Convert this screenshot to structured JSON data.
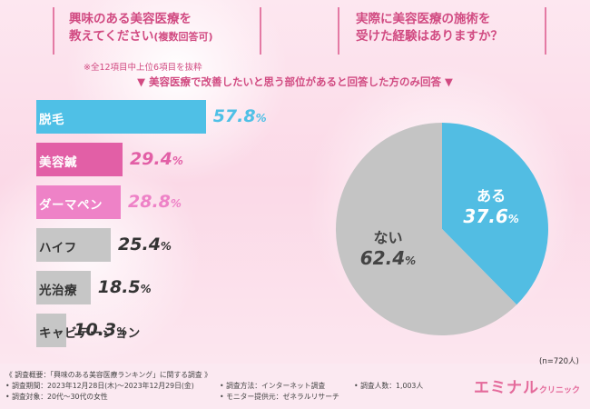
{
  "questions": {
    "left_line1": "興味のある美容医療を",
    "left_line2": "教えてください",
    "left_suffix": "(複数回答可)",
    "right_line1": "実際に美容医療の施術を",
    "right_line2": "受けた経験はありますか？"
  },
  "note": "※全12項目中上位6項目を抜粋",
  "subtitle": "▼ 美容医療で改善したいと思う部位があると回答した方のみ回答 ▼",
  "colors": {
    "bar_blue": "#4fc0e6",
    "bar_magenta": "#e25fa6",
    "bar_pink": "#ee82c7",
    "bar_gray": "#c6c6c6",
    "pie_blue": "#52bde3",
    "pie_gray": "#c4c4c4",
    "accent": "#d14b82"
  },
  "chart_data": [
    {
      "type": "bar",
      "orientation": "horizontal",
      "categories": [
        "脱毛",
        "美容鍼",
        "ダーマペン",
        "ハイフ",
        "光治療",
        "キャビテーション"
      ],
      "values": [
        57.8,
        29.4,
        28.8,
        25.4,
        18.5,
        10.3
      ],
      "value_labels": [
        "57.8",
        "29.4",
        "28.8",
        "25.4",
        "18.5",
        "10.3"
      ],
      "unit": "%"
    },
    {
      "type": "pie",
      "labels": [
        "ある",
        "ない"
      ],
      "values": [
        37.6,
        62.4
      ],
      "value_labels": [
        "37.6",
        "62.4"
      ],
      "unit": "%",
      "n_label": "(n=720人)"
    }
  ],
  "footer": {
    "overview": "《 調査概要：「興味のある美容医療ランキング」に関する調査 》",
    "period": "• 調査期間：2023年12月28日(木)～2023年12月29日(金)",
    "target": "• 調査対象：20代～30代の女性",
    "method": "• 調査方法：インターネット調査",
    "provider": "• モニター提供元：ゼネラルリサーチ",
    "count": "• 調査人数：1,003人"
  },
  "logo": {
    "main": "エミナル",
    "sub": "クリニック"
  }
}
